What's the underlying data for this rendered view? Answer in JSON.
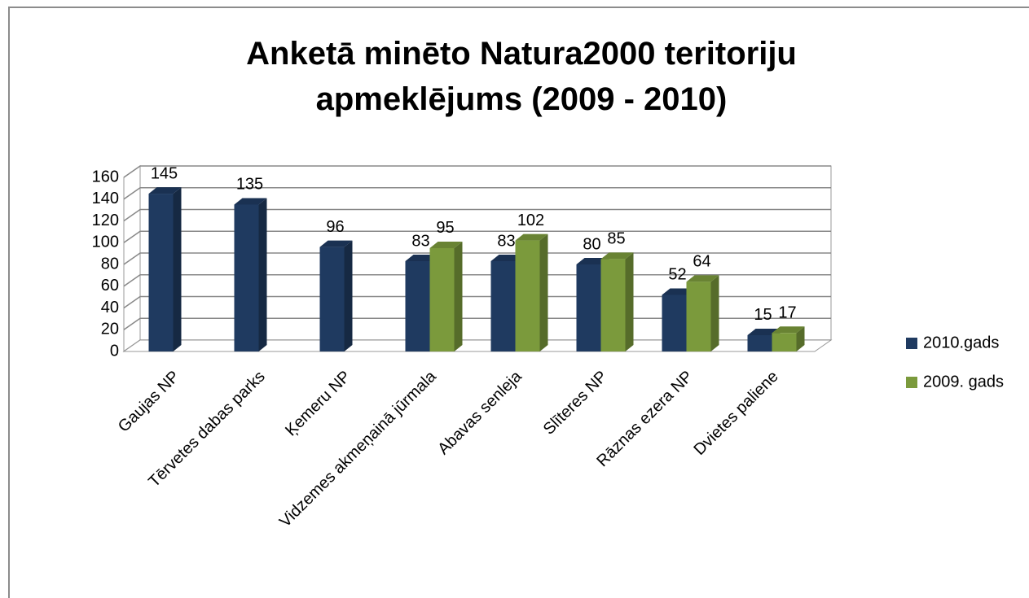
{
  "chart_data": {
    "type": "bar3d",
    "title": "Anketā minēto Natura2000 teritoriju apmeklējums (2009 - 2010)",
    "categories": [
      "Gaujas NP",
      "Tērvetes dabas parks",
      "Ķemeru NP",
      "Vidzemes akmeņainā jūrmala",
      "Abavas senleja",
      "Slīteres NP",
      "Rāznas ezera NP",
      "Dvietes paliene"
    ],
    "series": [
      {
        "name": "2010.gads",
        "color": "#1f3a60",
        "values": [
          145,
          135,
          96,
          83,
          83,
          80,
          52,
          15
        ]
      },
      {
        "name": "2009. gads",
        "color": "#7b9a3c",
        "values": [
          null,
          null,
          null,
          95,
          102,
          85,
          64,
          17
        ]
      }
    ],
    "ylim": [
      0,
      160
    ],
    "yticks": [
      0,
      20,
      40,
      60,
      80,
      100,
      120,
      140,
      160
    ],
    "grid": true,
    "legend": "right"
  }
}
